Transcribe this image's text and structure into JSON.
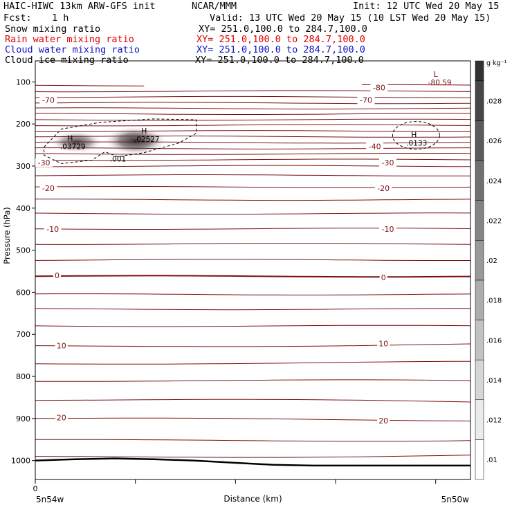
{
  "header": {
    "model": "HAIC-HIWC 13km ARW-GFS init",
    "center": "NCAR/MMM",
    "init": "Init: 12 UTC Wed 20 May 15",
    "fcst_label": "Fcst:",
    "fcst_value": "1 h",
    "valid": "Valid: 13 UTC Wed 20 May 15 (10 LST Wed 20 May 15)",
    "fields": [
      {
        "name": "Snow mixing ratio",
        "xy": "XY= 251.0,100.0 to 284.7,100.0",
        "color": "#000000"
      },
      {
        "name": "Rain water mixing ratio",
        "xy": "XY= 251.0,100.0 to 284.7,100.0",
        "color": "#e00000"
      },
      {
        "name": "Cloud water mixing ratio",
        "xy": "XY= 251.0,100.0 to 284.7,100.0",
        "color": "#1010c8"
      },
      {
        "name": "Cloud ice mixing ratio",
        "xy": "XY= 251.0,100.0 to 284.7,100.0",
        "color": "#000000"
      }
    ]
  },
  "chart_data": {
    "type": "heatmap",
    "title": "HAIC-HIWC 13km ARW-GFS init",
    "xlabel": "Distance (km)",
    "ylabel": "Pressure (hPa)",
    "x_start_label": "5n54w",
    "x_end_label": "5n50w",
    "x_tick_label": "0",
    "y_ticks": [
      "100",
      "200",
      "300",
      "400",
      "500",
      "600",
      "700",
      "800",
      "900",
      "1000"
    ],
    "y_range": [
      50,
      1045
    ],
    "colorbar": {
      "unit": "g kg⁻¹",
      "ticks": [
        ".01",
        ".012",
        ".014",
        ".016",
        ".018",
        ".02",
        ".022",
        ".024",
        ".026",
        ".028"
      ],
      "range": [
        0.009,
        0.0295
      ]
    },
    "temperature_contours": {
      "unit": "C",
      "labels": [
        {
          "text": "-80",
          "x_frac": 0.79,
          "p": 113,
          "side": "right"
        },
        {
          "text": "-70",
          "x_frac": 0.03,
          "p": 143
        },
        {
          "text": "-70",
          "x_frac": 0.76,
          "p": 143
        },
        {
          "text": "-40",
          "x_frac": 0.78,
          "p": 253
        },
        {
          "text": "-30",
          "x_frac": 0.02,
          "p": 292
        },
        {
          "text": "-30",
          "x_frac": 0.81,
          "p": 292
        },
        {
          "text": "-20",
          "x_frac": 0.03,
          "p": 353
        },
        {
          "text": "-20",
          "x_frac": 0.8,
          "p": 353
        },
        {
          "text": "-10",
          "x_frac": 0.04,
          "p": 450
        },
        {
          "text": "-10",
          "x_frac": 0.81,
          "p": 450
        },
        {
          "text": "0",
          "x_frac": 0.05,
          "p": 560
        },
        {
          "text": "0",
          "x_frac": 0.8,
          "p": 565
        },
        {
          "text": "10",
          "x_frac": 0.06,
          "p": 727
        },
        {
          "text": "10",
          "x_frac": 0.8,
          "p": 722
        },
        {
          "text": "20",
          "x_frac": 0.06,
          "p": 898
        },
        {
          "text": "20",
          "x_frac": 0.8,
          "p": 905
        }
      ],
      "isotherm_pressures": [
        108,
        122,
        136,
        150,
        163,
        176,
        190,
        203,
        217,
        230,
        244,
        258,
        271,
        285,
        300,
        322,
        350,
        380,
        413,
        449,
        485,
        523,
        562,
        605,
        640,
        680,
        727,
        770,
        812,
        857,
        900,
        950,
        990
      ]
    },
    "highs_lows": [
      {
        "type": "H",
        "x_frac": 0.08,
        "p": 240,
        "value": ".03729"
      },
      {
        "type": "H",
        "x_frac": 0.25,
        "p": 223,
        "value": ".02527"
      },
      {
        "type": "H",
        "x_frac": 0.87,
        "p": 232,
        "value": ".0133"
      },
      {
        "type": "L",
        "x_frac": 0.92,
        "p": 88,
        "value": "-80.59"
      }
    ],
    "contour_label": {
      "text": ".001",
      "x_frac": 0.19,
      "p": 283
    },
    "ground_pressure": [
      1000,
      997,
      995,
      997,
      1000,
      1005,
      1010,
      1012,
      1012,
      1012,
      1012,
      1012
    ]
  }
}
